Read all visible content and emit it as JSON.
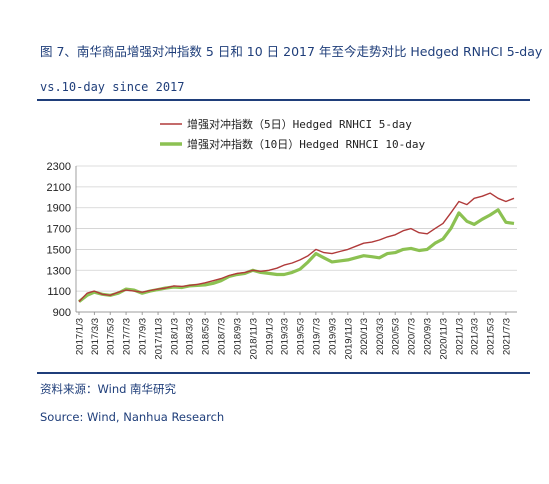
{
  "header": {
    "title_line1": "图 7、南华商品增强对冲指数 5 日和 10 日 2017 年至今走势对比 Hedged RNHCI 5-day",
    "title_line2": "vs.10-day since 2017"
  },
  "footer": {
    "source_cn": "资料来源：Wind 南华研究",
    "source_en": "Source: Wind, Nanhua Research"
  },
  "chart_data": {
    "type": "line",
    "title": "",
    "xlabel": "",
    "ylabel": "",
    "ylim": [
      900,
      2300
    ],
    "yticks": [
      900,
      1100,
      1300,
      1500,
      1700,
      1900,
      2100,
      2300
    ],
    "grid": true,
    "legend_position": "top-center",
    "x_ticks": [
      "2017/1/3",
      "2017/3/3",
      "2017/5/3",
      "2017/7/3",
      "2017/9/3",
      "2017/11/3",
      "2018/1/3",
      "2018/3/3",
      "2018/5/3",
      "2018/7/3",
      "2018/9/3",
      "2018/11/3",
      "2019/1/3",
      "2019/3/3",
      "2019/5/3",
      "2019/7/3",
      "2019/9/3",
      "2019/11/3",
      "2020/1/3",
      "2020/3/3",
      "2020/5/3",
      "2020/7/3",
      "2020/9/3",
      "2020/11/3",
      "2021/1/3",
      "2021/3/3",
      "2021/5/3",
      "2021/7/3"
    ],
    "x": [
      "2017/1/3",
      "2017/2/3",
      "2017/3/3",
      "2017/4/3",
      "2017/5/3",
      "2017/6/3",
      "2017/7/3",
      "2017/8/3",
      "2017/9/3",
      "2017/10/3",
      "2017/11/3",
      "2017/12/3",
      "2018/1/3",
      "2018/2/3",
      "2018/3/3",
      "2018/4/3",
      "2018/5/3",
      "2018/6/3",
      "2018/7/3",
      "2018/8/3",
      "2018/9/3",
      "2018/10/3",
      "2018/11/3",
      "2018/12/3",
      "2019/1/3",
      "2019/2/3",
      "2019/3/3",
      "2019/4/3",
      "2019/5/3",
      "2019/6/3",
      "2019/7/3",
      "2019/8/3",
      "2019/9/3",
      "2019/10/3",
      "2019/11/3",
      "2019/12/3",
      "2020/1/3",
      "2020/2/3",
      "2020/3/3",
      "2020/4/3",
      "2020/5/3",
      "2020/6/3",
      "2020/7/3",
      "2020/8/3",
      "2020/9/3",
      "2020/10/3",
      "2020/11/3",
      "2020/12/3",
      "2021/1/3",
      "2021/2/3",
      "2021/3/3",
      "2021/4/3",
      "2021/5/3",
      "2021/6/3",
      "2021/7/3",
      "2021/8/3"
    ],
    "series": [
      {
        "name": "增强对冲指数（5日）Hedged RNHCI 5-day",
        "color": "#b03a3a",
        "values": [
          1000,
          1080,
          1100,
          1070,
          1060,
          1090,
          1110,
          1100,
          1090,
          1105,
          1120,
          1130,
          1150,
          1145,
          1155,
          1165,
          1180,
          1200,
          1220,
          1250,
          1270,
          1280,
          1300,
          1290,
          1300,
          1320,
          1350,
          1370,
          1400,
          1440,
          1500,
          1470,
          1460,
          1480,
          1500,
          1530,
          1560,
          1570,
          1590,
          1620,
          1640,
          1680,
          1700,
          1660,
          1650,
          1700,
          1750,
          1850,
          1960,
          1930,
          1990,
          2010,
          2040,
          1990,
          1960,
          1990
        ]
      },
      {
        "name": "增强对冲指数（10日）Hedged RNHCI 10-day",
        "color": "#8cc152",
        "values": [
          1000,
          1060,
          1090,
          1070,
          1060,
          1080,
          1120,
          1110,
          1080,
          1100,
          1115,
          1130,
          1140,
          1135,
          1150,
          1155,
          1160,
          1175,
          1200,
          1240,
          1260,
          1270,
          1300,
          1280,
          1270,
          1260,
          1260,
          1280,
          1310,
          1380,
          1460,
          1420,
          1380,
          1390,
          1400,
          1420,
          1440,
          1430,
          1420,
          1460,
          1470,
          1500,
          1510,
          1490,
          1500,
          1560,
          1600,
          1700,
          1850,
          1770,
          1740,
          1790,
          1830,
          1880,
          1760,
          1750
        ]
      }
    ]
  }
}
